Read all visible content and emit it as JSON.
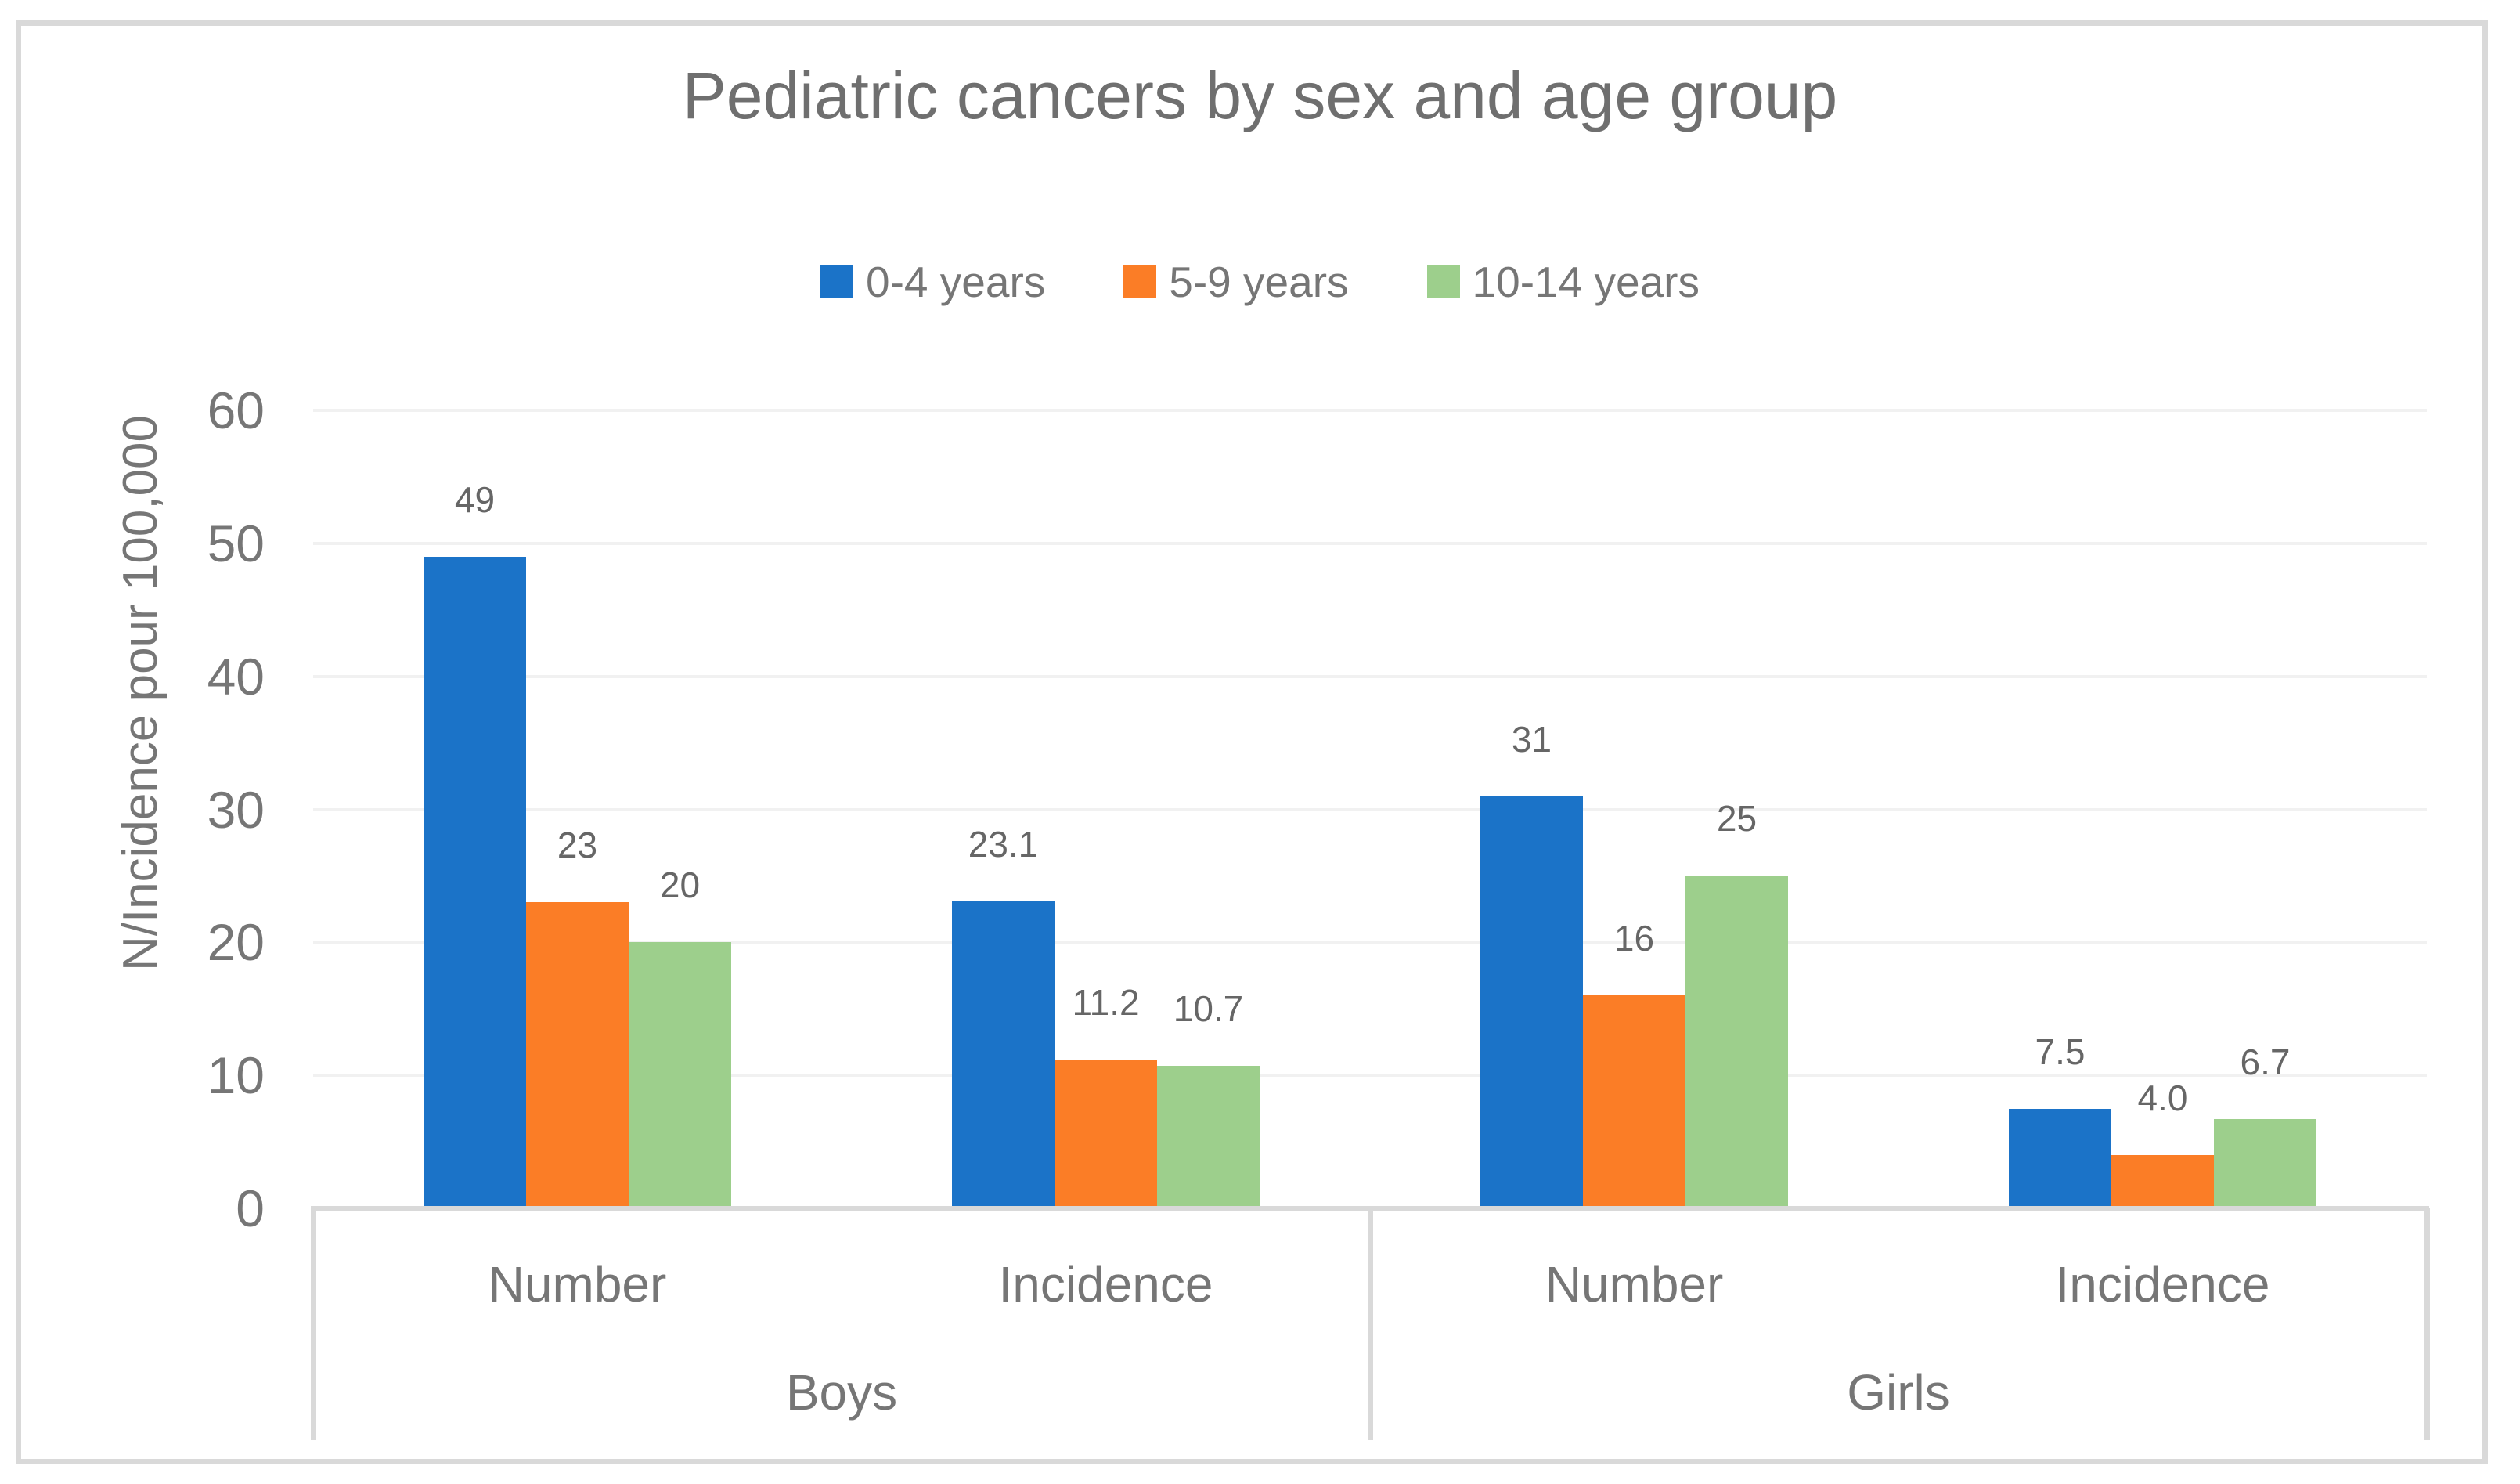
{
  "chart_data": {
    "type": "bar",
    "title": "Pediatric cancers by sex and age group",
    "ylabel": "N/Incidence pour 100,000",
    "xlabel": "",
    "ylim": [
      0,
      60
    ],
    "yticks": [
      0,
      10,
      20,
      30,
      40,
      50,
      60
    ],
    "ytick_labels": [
      "0",
      "10",
      "20",
      "30",
      "40",
      "50",
      "60"
    ],
    "grid": true,
    "legend_position": "top",
    "groups": [
      {
        "label": "Boys",
        "categories": [
          "Number",
          "Incidence"
        ]
      },
      {
        "label": "Girls",
        "categories": [
          "Number",
          "Incidence"
        ]
      }
    ],
    "categories": [
      "Boys Number",
      "Boys Incidence",
      "Girls Number",
      "Girls Incidence"
    ],
    "series": [
      {
        "name": "0-4 years",
        "color": "#1b73c8",
        "values": [
          49,
          23.1,
          31,
          7.5
        ],
        "labels": [
          "49",
          "23.1",
          "31",
          "7.5"
        ]
      },
      {
        "name": "5-9 years",
        "color": "#fb7d26",
        "values": [
          23,
          11.2,
          16,
          4.0
        ],
        "labels": [
          "23",
          "11.2",
          "16",
          "4.0"
        ]
      },
      {
        "name": "10-14 years",
        "color": "#9dcf8c",
        "values": [
          20,
          10.7,
          25,
          6.7
        ],
        "labels": [
          "20",
          "10.7",
          "25",
          "6.7"
        ]
      }
    ],
    "colors": {
      "axis_line": "#d9d9d9",
      "gridline": "#f1f1f1",
      "outer_border": "#d9d9d9",
      "title_text": "#6f6f6f",
      "axis_text": "#767676",
      "data_label_text": "#666666"
    }
  }
}
